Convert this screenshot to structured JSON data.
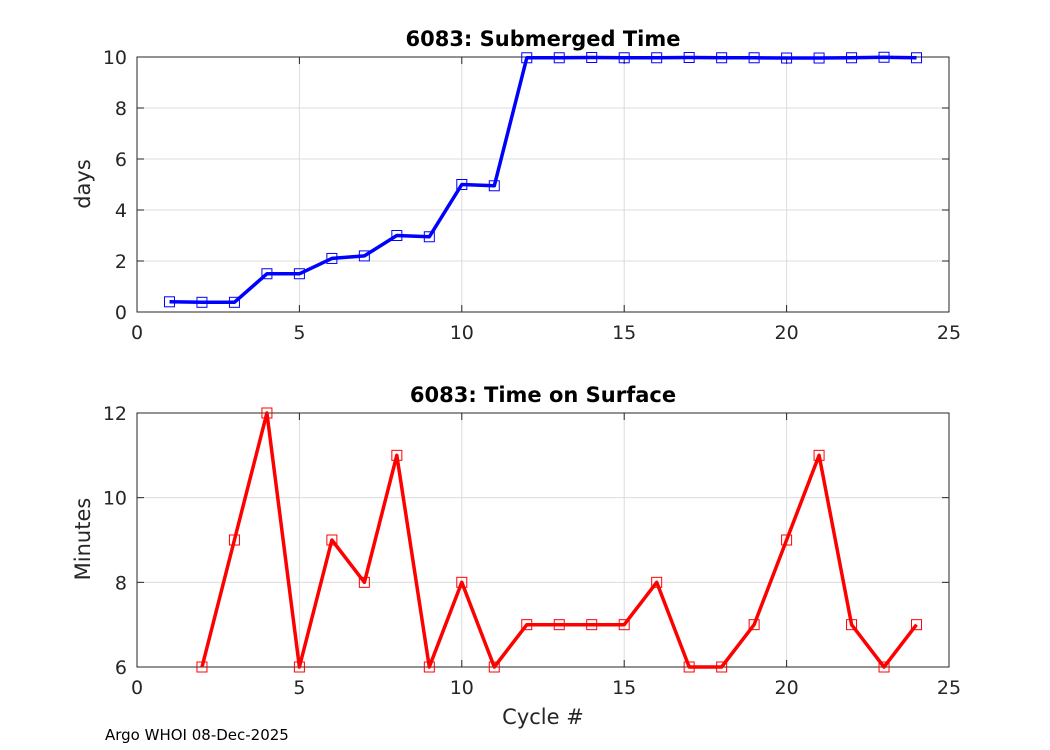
{
  "footer": "Argo WHOI 08-Dec-2025",
  "chart_data": [
    {
      "type": "line",
      "title": "6083: Submerged Time",
      "xlabel": "",
      "ylabel": "days",
      "xlim": [
        0,
        25
      ],
      "ylim": [
        0,
        10
      ],
      "xticks": [
        0,
        5,
        10,
        15,
        20,
        25
      ],
      "yticks": [
        0,
        2,
        4,
        6,
        8,
        10
      ],
      "grid": true,
      "series": [
        {
          "color": "#0000ff",
          "marker": "square",
          "x": [
            1,
            2,
            3,
            4,
            5,
            6,
            7,
            8,
            9,
            10,
            11,
            12,
            13,
            14,
            15,
            16,
            17,
            18,
            19,
            20,
            21,
            22,
            23,
            24
          ],
          "y": [
            0.4,
            0.38,
            0.38,
            1.5,
            1.5,
            2.1,
            2.2,
            3.0,
            2.95,
            5.0,
            4.95,
            9.97,
            9.97,
            9.98,
            9.97,
            9.97,
            9.98,
            9.97,
            9.97,
            9.96,
            9.96,
            9.97,
            9.99,
            9.97
          ]
        }
      ]
    },
    {
      "type": "line",
      "title": "6083: Time on Surface",
      "xlabel": "Cycle #",
      "ylabel": "Minutes",
      "xlim": [
        0,
        25
      ],
      "ylim": [
        6,
        12
      ],
      "xticks": [
        0,
        5,
        10,
        15,
        20,
        25
      ],
      "yticks": [
        6,
        8,
        10,
        12
      ],
      "grid": true,
      "series": [
        {
          "color": "#ff0000",
          "marker": "square",
          "x": [
            2,
            3,
            4,
            5,
            6,
            7,
            8,
            9,
            10,
            11,
            12,
            13,
            14,
            15,
            16,
            17,
            18,
            19,
            20,
            21,
            22,
            23,
            24
          ],
          "y": [
            6,
            9,
            12,
            6,
            9,
            8,
            11,
            6,
            8,
            6,
            7,
            7,
            7,
            7,
            8,
            6,
            6,
            7,
            9,
            11,
            7,
            6,
            7
          ]
        }
      ]
    }
  ]
}
